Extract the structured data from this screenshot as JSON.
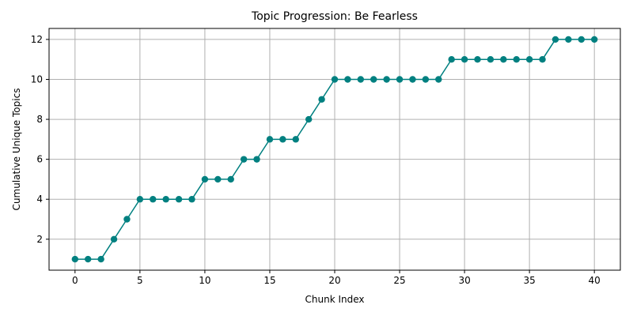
{
  "chart_data": {
    "type": "line",
    "title": "Topic Progression: Be Fearless",
    "xlabel": "Chunk Index",
    "ylabel": "Cumulative Unique Topics",
    "xlim": [
      -2,
      42
    ],
    "ylim": [
      0.45,
      12.55
    ],
    "xticks": [
      0,
      5,
      10,
      15,
      20,
      25,
      30,
      35,
      40
    ],
    "yticks": [
      2,
      4,
      6,
      8,
      10,
      12
    ],
    "grid": true,
    "color": "#008080",
    "marker": "circle",
    "series": [
      {
        "x": [
          0,
          1,
          2,
          3,
          4,
          5,
          6,
          7,
          8,
          9,
          10,
          11,
          12,
          13,
          14,
          15,
          16,
          17,
          18,
          19,
          20,
          21,
          22,
          23,
          24,
          25,
          26,
          27,
          28,
          29,
          30,
          31,
          32,
          33,
          34,
          35,
          36,
          37,
          38,
          39,
          40
        ],
        "values": [
          1,
          1,
          1,
          2,
          3,
          4,
          4,
          4,
          4,
          4,
          5,
          5,
          5,
          6,
          6,
          7,
          7,
          7,
          8,
          9,
          10,
          10,
          10,
          10,
          10,
          10,
          10,
          10,
          10,
          11,
          11,
          11,
          11,
          11,
          11,
          11,
          11,
          12,
          12,
          12,
          12
        ]
      }
    ]
  }
}
